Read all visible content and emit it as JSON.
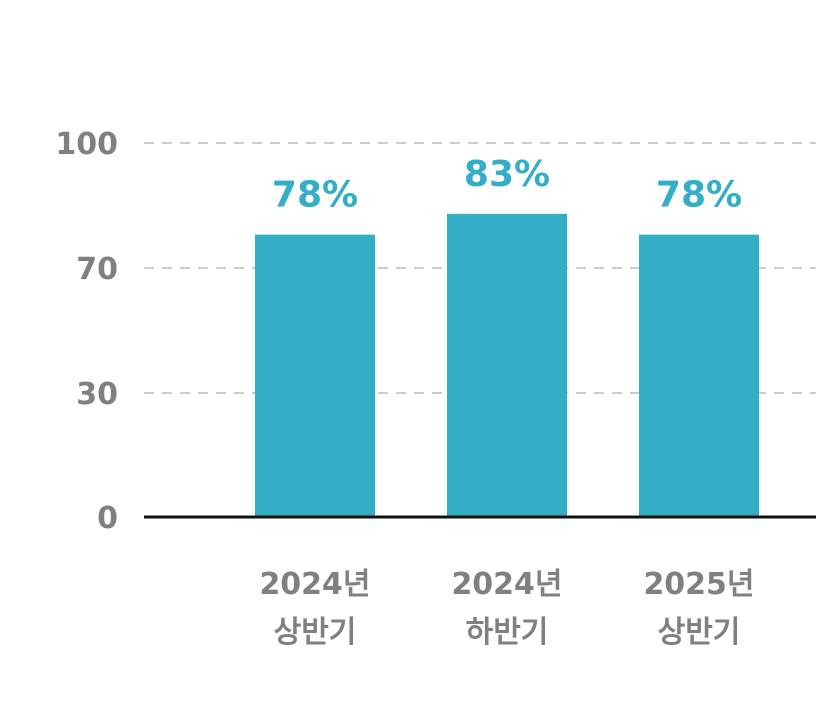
{
  "chart_data": {
    "type": "bar",
    "categories": [
      [
        "2024년",
        "상반기"
      ],
      [
        "2024년",
        "하반기"
      ],
      [
        "2025년",
        "상반기"
      ]
    ],
    "values": [
      78,
      83,
      78
    ],
    "data_labels": [
      "78%",
      "83%",
      "78%"
    ],
    "yticks": [
      0,
      30,
      70,
      100
    ],
    "ytick_labels": [
      "0",
      "30",
      "70",
      "100"
    ],
    "grid": true,
    "colors": {
      "bar": "#33AEC6",
      "data_label": "#33AEC6",
      "tick_text": "#808080",
      "grid": "#CCCCCC",
      "baseline": "#111111"
    }
  }
}
